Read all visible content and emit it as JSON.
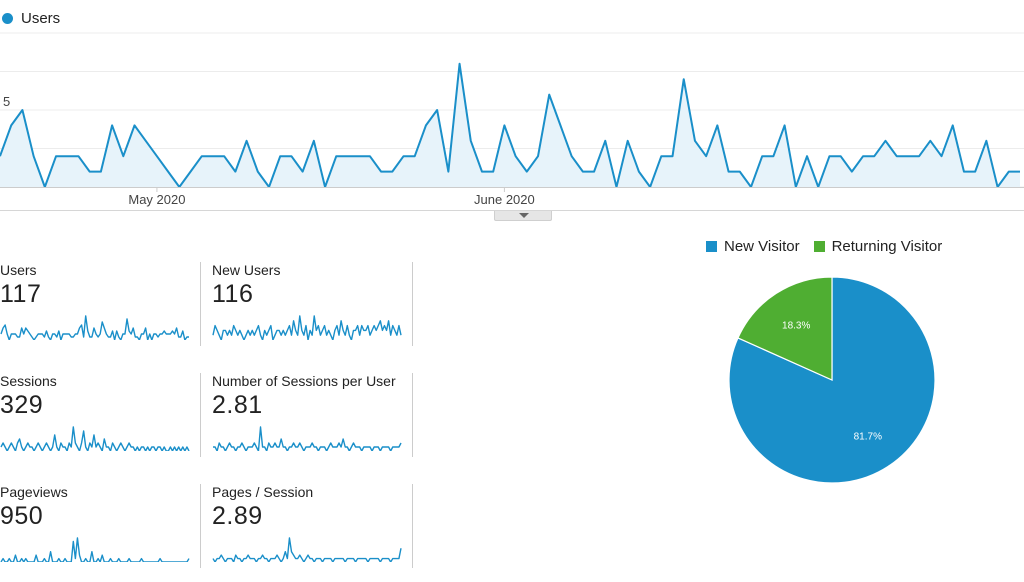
{
  "colors": {
    "users": "#1a8fc9",
    "new_visitor": "#1a8fc9",
    "returning_visitor": "#4fae32",
    "fill": "#e7f3fa"
  },
  "chart_data": [
    {
      "type": "area",
      "legend": [
        "Users"
      ],
      "ylim": [
        0,
        10
      ],
      "yticks": [
        "5",
        "10"
      ],
      "xtick_labels": [
        {
          "label": "May 2020",
          "index": 14
        },
        {
          "label": "June 2020",
          "index": 45
        }
      ],
      "series": [
        {
          "name": "Users",
          "values": [
            2,
            4,
            5,
            2,
            0,
            2,
            2,
            2,
            1,
            1,
            4,
            2,
            4,
            3,
            2,
            1,
            0,
            1,
            2,
            2,
            2,
            1,
            3,
            1,
            0,
            2,
            2,
            1,
            3,
            0,
            2,
            2,
            2,
            2,
            1,
            1,
            2,
            2,
            4,
            5,
            1,
            8,
            3,
            1,
            1,
            4,
            2,
            1,
            2,
            6,
            4,
            2,
            1,
            1,
            3,
            0,
            3,
            1,
            0,
            2,
            2,
            7,
            3,
            2,
            4,
            1,
            1,
            0,
            2,
            2,
            4,
            0,
            2,
            0,
            2,
            2,
            1,
            2,
            2,
            3,
            2,
            2,
            2,
            3,
            2,
            4,
            1,
            1,
            3,
            0,
            1,
            1
          ]
        }
      ]
    },
    {
      "type": "pie",
      "legend": [
        "New Visitor",
        "Returning Visitor"
      ],
      "slices": [
        {
          "name": "New Visitor",
          "value": 81.7,
          "label": "81.7%"
        },
        {
          "name": "Returning Visitor",
          "value": 18.3,
          "label": "18.3%"
        }
      ]
    }
  ],
  "metrics": [
    {
      "label": "Users",
      "value": "117",
      "spark": [
        2,
        4,
        5,
        2,
        0,
        2,
        2,
        2,
        1,
        1,
        4,
        2,
        4,
        3,
        2,
        1,
        0,
        1,
        2,
        2,
        2,
        1,
        3,
        1,
        0,
        2,
        2,
        1,
        3,
        0,
        2,
        2,
        2,
        2,
        1,
        1,
        2,
        2,
        4,
        5,
        1,
        8,
        3,
        1,
        1,
        4,
        2,
        1,
        2,
        6,
        4,
        2,
        1,
        1,
        3,
        0,
        3,
        1,
        0,
        2,
        2,
        7,
        3,
        2,
        4,
        1,
        1,
        0,
        2,
        2,
        4,
        0,
        2,
        0,
        2,
        2,
        1,
        2,
        2,
        3,
        2,
        2,
        2,
        3,
        2,
        4,
        1,
        1,
        3,
        0,
        1,
        1
      ]
    },
    {
      "label": "New Users",
      "value": "116",
      "spark": [
        1,
        3,
        2,
        1,
        0,
        2,
        2,
        1,
        2,
        1,
        3,
        2,
        1,
        2,
        1,
        0,
        1,
        2,
        1,
        2,
        1,
        2,
        3,
        1,
        0,
        2,
        1,
        2,
        3,
        0,
        1,
        2,
        2,
        1,
        2,
        1,
        2,
        3,
        1,
        4,
        2,
        1,
        5,
        2,
        1,
        3,
        0,
        2,
        1,
        5,
        2,
        3,
        1,
        2,
        3,
        1,
        2,
        1,
        0,
        2,
        3,
        1,
        4,
        2,
        1,
        3,
        1,
        0,
        2,
        2,
        3,
        1,
        3,
        2,
        2,
        3,
        1,
        2,
        3,
        2,
        3,
        4,
        2,
        3,
        2,
        4,
        1,
        3,
        2,
        1,
        3,
        1
      ]
    },
    {
      "label": "Sessions",
      "value": "329",
      "spark": [
        3,
        4,
        3,
        2,
        3,
        4,
        3,
        2,
        4,
        5,
        3,
        2,
        3,
        4,
        3,
        3,
        2,
        3,
        4,
        3,
        2,
        3,
        4,
        3,
        2,
        3,
        6,
        3,
        2,
        4,
        3,
        3,
        2,
        4,
        3,
        8,
        4,
        3,
        2,
        4,
        7,
        3,
        2,
        4,
        3,
        6,
        3,
        4,
        3,
        2,
        5,
        3,
        3,
        2,
        4,
        3,
        2,
        3,
        4,
        3,
        2,
        3,
        4,
        3,
        3,
        2,
        3,
        2,
        3,
        3,
        2,
        3,
        2,
        3,
        3,
        2,
        3,
        3,
        2,
        3,
        2,
        2,
        3,
        2,
        3,
        2,
        3,
        2,
        3,
        2,
        3,
        2
      ]
    },
    {
      "label": "Number of Sessions per User",
      "value": "2.81",
      "spark": [
        3,
        3,
        2,
        4,
        3,
        3,
        2,
        3,
        4,
        3,
        3,
        2,
        3,
        3,
        4,
        3,
        2,
        3,
        3,
        3,
        4,
        3,
        2,
        8,
        3,
        3,
        2,
        4,
        3,
        3,
        4,
        3,
        3,
        5,
        3,
        3,
        2,
        3,
        3,
        4,
        3,
        3,
        4,
        3,
        2,
        3,
        3,
        3,
        4,
        3,
        3,
        2,
        3,
        3,
        3,
        2,
        3,
        4,
        3,
        3,
        3,
        4,
        3,
        5,
        3,
        3,
        2,
        3,
        4,
        3,
        3,
        3,
        2,
        3,
        3,
        3,
        3,
        2,
        3,
        3,
        3,
        2,
        3,
        3,
        3,
        3,
        2,
        3,
        3,
        3,
        3,
        4
      ]
    },
    {
      "label": "Pageviews",
      "value": "950",
      "spark": [
        2,
        3,
        2,
        2,
        3,
        2,
        2,
        4,
        2,
        2,
        3,
        2,
        3,
        2,
        2,
        2,
        2,
        4,
        2,
        2,
        2,
        3,
        2,
        2,
        5,
        2,
        2,
        2,
        3,
        2,
        2,
        3,
        2,
        2,
        2,
        8,
        3,
        9,
        4,
        2,
        2,
        3,
        2,
        2,
        5,
        2,
        2,
        3,
        2,
        4,
        2,
        2,
        2,
        3,
        2,
        2,
        2,
        3,
        2,
        2,
        2,
        2,
        3,
        2,
        2,
        2,
        2,
        2,
        3,
        2,
        2,
        2,
        2,
        2,
        2,
        2,
        2,
        3,
        2,
        2,
        2,
        2,
        2,
        2,
        2,
        2,
        2,
        2,
        2,
        2,
        2,
        3
      ]
    },
    {
      "label": "Pages / Session",
      "value": "2.89",
      "spark": [
        3,
        2,
        3,
        3,
        4,
        3,
        2,
        3,
        3,
        3,
        2,
        4,
        3,
        3,
        2,
        3,
        3,
        4,
        3,
        3,
        3,
        2,
        3,
        3,
        4,
        3,
        3,
        2,
        3,
        3,
        3,
        4,
        3,
        2,
        3,
        5,
        3,
        9,
        5,
        4,
        3,
        3,
        4,
        3,
        2,
        3,
        4,
        3,
        3,
        2,
        3,
        3,
        3,
        2,
        3,
        3,
        3,
        3,
        2,
        3,
        3,
        3,
        3,
        3,
        2,
        3,
        3,
        3,
        3,
        2,
        3,
        3,
        3,
        3,
        3,
        2,
        3,
        3,
        3,
        3,
        3,
        2,
        3,
        3,
        3,
        3,
        2,
        3,
        3,
        3,
        3,
        6
      ]
    }
  ]
}
